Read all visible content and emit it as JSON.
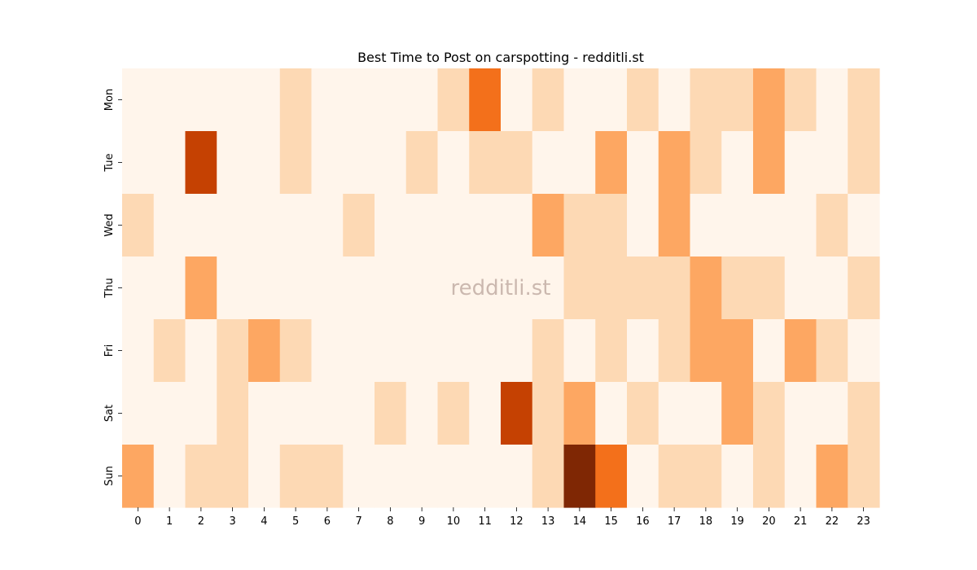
{
  "chart_data": {
    "type": "heatmap",
    "title": "Best Time to Post on carspotting - redditli.st",
    "watermark": "redditli.st",
    "x_categories": [
      "0",
      "1",
      "2",
      "3",
      "4",
      "5",
      "6",
      "7",
      "8",
      "9",
      "10",
      "11",
      "12",
      "13",
      "14",
      "15",
      "16",
      "17",
      "18",
      "19",
      "20",
      "21",
      "22",
      "23"
    ],
    "y_categories": [
      "Mon",
      "Tue",
      "Wed",
      "Thu",
      "Fri",
      "Sat",
      "Sun"
    ],
    "xlabel": "",
    "ylabel": "",
    "colorbar": false,
    "colormap": "Oranges",
    "values": [
      [
        0,
        0,
        0,
        0,
        0,
        1,
        0,
        0,
        0,
        0,
        1,
        3,
        0,
        1,
        0,
        0,
        1,
        0,
        1,
        1,
        2,
        1,
        0,
        1
      ],
      [
        0,
        0,
        4,
        0,
        0,
        1,
        0,
        0,
        0,
        1,
        0,
        1,
        1,
        0,
        0,
        2,
        0,
        2,
        1,
        0,
        2,
        0,
        0,
        1
      ],
      [
        1,
        0,
        0,
        0,
        0,
        0,
        0,
        1,
        0,
        0,
        0,
        0,
        0,
        2,
        1,
        1,
        0,
        2,
        0,
        0,
        0,
        0,
        1,
        0
      ],
      [
        0,
        0,
        2,
        0,
        0,
        0,
        0,
        0,
        0,
        0,
        0,
        0,
        0,
        0,
        1,
        1,
        1,
        1,
        2,
        1,
        1,
        0,
        0,
        1
      ],
      [
        0,
        1,
        0,
        1,
        2,
        1,
        0,
        0,
        0,
        0,
        0,
        0,
        0,
        1,
        0,
        1,
        0,
        1,
        2,
        2,
        0,
        2,
        1,
        0
      ],
      [
        0,
        0,
        0,
        1,
        0,
        0,
        0,
        0,
        1,
        0,
        1,
        0,
        4,
        1,
        2,
        0,
        1,
        0,
        0,
        2,
        1,
        0,
        0,
        1
      ],
      [
        2,
        0,
        1,
        1,
        0,
        1,
        1,
        0,
        0,
        0,
        0,
        0,
        0,
        1,
        5,
        3,
        0,
        1,
        1,
        0,
        1,
        0,
        2,
        1
      ]
    ],
    "color_levels": [
      "#fff5eb",
      "#fdd9b4",
      "#fda762",
      "#f3701b",
      "#c54102",
      "#7f2704"
    ]
  }
}
